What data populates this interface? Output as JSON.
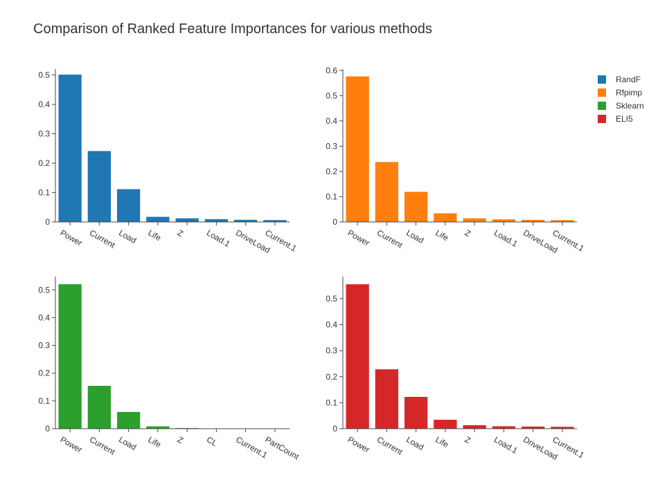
{
  "title": "Comparison of Ranked Feature Importances for various methods",
  "legend": {
    "position": "top-right",
    "items": [
      {
        "label": "RandF",
        "color": "#1f77b4"
      },
      {
        "label": "Rfpimp",
        "color": "#ff7f0e"
      },
      {
        "label": "Sklearn",
        "color": "#2ca02c"
      },
      {
        "label": "ELI5",
        "color": "#d62728"
      }
    ]
  },
  "chart_data": [
    {
      "type": "bar",
      "series_name": "RandF",
      "color": "#1f77b4",
      "categories": [
        "Power",
        "Current",
        "Load",
        "Life",
        "Z",
        "Load.1",
        "DriveLoad",
        "Current.1"
      ],
      "values": [
        0.502,
        0.242,
        0.112,
        0.018,
        0.013,
        0.01,
        0.008,
        0.007
      ],
      "ylim": [
        0,
        0.52
      ],
      "yticks": [
        0,
        0.1,
        0.2,
        0.3,
        0.4,
        0.5
      ],
      "ytick_labels": [
        "0",
        "0.1",
        "0.2",
        "0.3",
        "0.4",
        "0.5"
      ],
      "grid": false
    },
    {
      "type": "bar",
      "series_name": "Rfpimp",
      "color": "#ff7f0e",
      "categories": [
        "Power",
        "Current",
        "Load",
        "Life",
        "Z",
        "Load.1",
        "DriveLoad",
        "Current.1"
      ],
      "values": [
        0.577,
        0.238,
        0.12,
        0.035,
        0.015,
        0.011,
        0.009,
        0.008
      ],
      "ylim": [
        0,
        0.605
      ],
      "yticks": [
        0,
        0.1,
        0.2,
        0.3,
        0.4,
        0.5,
        0.6
      ],
      "ytick_labels": [
        "0",
        "0.1",
        "0.2",
        "0.3",
        "0.4",
        "0.5",
        "0.6"
      ],
      "grid": false
    },
    {
      "type": "bar",
      "series_name": "Sklearn",
      "color": "#2ca02c",
      "categories": [
        "Power",
        "Current",
        "Load",
        "Life",
        "Z",
        "CL",
        "Current.1",
        "PartCount"
      ],
      "values": [
        0.521,
        0.155,
        0.061,
        0.009,
        0.003,
        0.001,
        0.0005,
        0.0003
      ],
      "ylim": [
        0,
        0.548
      ],
      "yticks": [
        0,
        0.1,
        0.2,
        0.3,
        0.4,
        0.5
      ],
      "ytick_labels": [
        "0",
        "0.1",
        "0.2",
        "0.3",
        "0.4",
        "0.5"
      ],
      "grid": false
    },
    {
      "type": "bar",
      "series_name": "ELI5",
      "color": "#d62728",
      "categories": [
        "Power",
        "Current",
        "Load",
        "Life",
        "Z",
        "Load.1",
        "DriveLoad",
        "Current.1"
      ],
      "values": [
        0.556,
        0.229,
        0.123,
        0.035,
        0.014,
        0.01,
        0.009,
        0.008
      ],
      "ylim": [
        0,
        0.585
      ],
      "yticks": [
        0,
        0.1,
        0.2,
        0.3,
        0.4,
        0.5
      ],
      "ytick_labels": [
        "0",
        "0.1",
        "0.2",
        "0.3",
        "0.4",
        "0.5"
      ],
      "grid": false
    }
  ]
}
